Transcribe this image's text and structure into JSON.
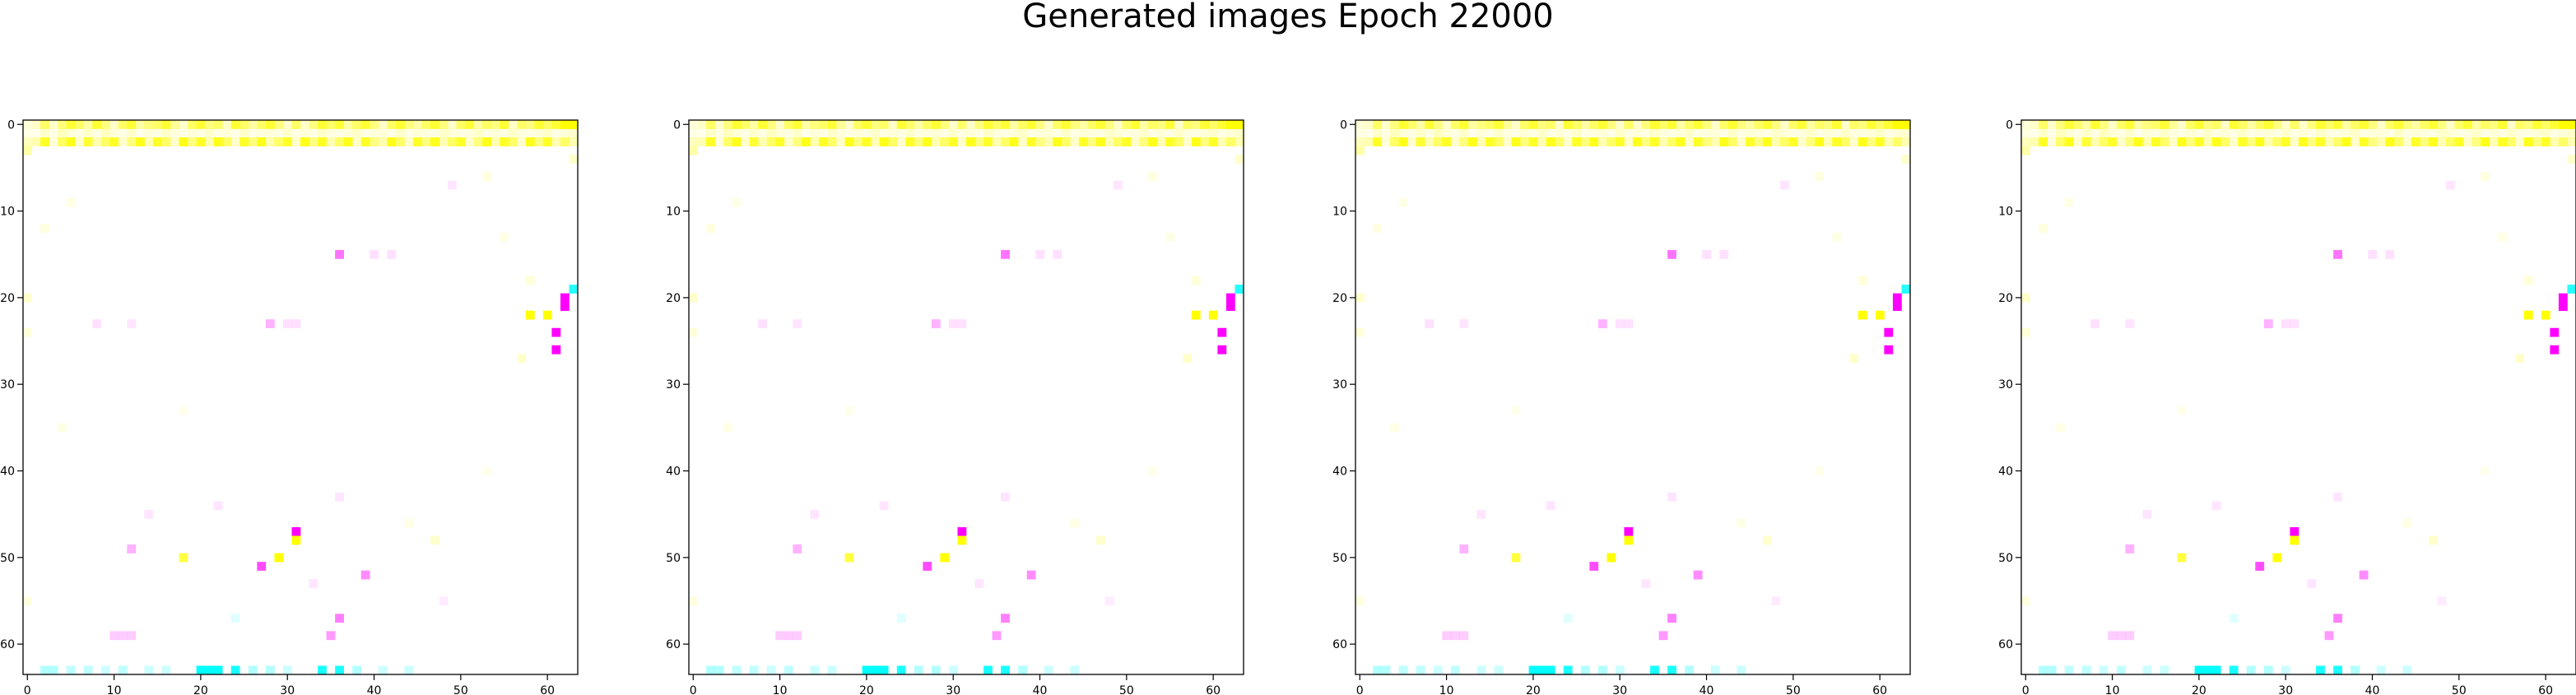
{
  "figure": {
    "title": "Generated images Epoch 22000"
  },
  "colors": {
    "background": "#ffffff",
    "yellow": "#ffff00",
    "magenta": "#ff00ff",
    "cyan": "#00ffff",
    "axis": "#000000"
  },
  "chart_data": [
    {
      "type": "heatmap",
      "panel": 1,
      "xlim": [
        -0.5,
        63.5
      ],
      "ylim": [
        63.5,
        -0.5
      ],
      "xticks": [
        "0",
        "10",
        "20",
        "30",
        "40",
        "50",
        "60"
      ],
      "yticks": [
        "0",
        "10",
        "20",
        "30",
        "40",
        "50",
        "60"
      ],
      "grid": false
    },
    {
      "type": "heatmap",
      "panel": 2,
      "xlim": [
        -0.5,
        63.5
      ],
      "ylim": [
        63.5,
        -0.5
      ],
      "xticks": [
        "0",
        "10",
        "20",
        "30",
        "40",
        "50",
        "60"
      ],
      "yticks": [
        "0",
        "10",
        "20",
        "30",
        "40",
        "50",
        "60"
      ],
      "grid": false
    },
    {
      "type": "heatmap",
      "panel": 3,
      "xlim": [
        -0.5,
        63.5
      ],
      "ylim": [
        63.5,
        -0.5
      ],
      "xticks": [
        "0",
        "10",
        "20",
        "30",
        "40",
        "50",
        "60"
      ],
      "yticks": [
        "0",
        "10",
        "20",
        "30",
        "40",
        "50",
        "60"
      ],
      "grid": false
    },
    {
      "type": "heatmap",
      "panel": 4,
      "xlim": [
        -0.5,
        63.5
      ],
      "ylim": [
        63.5,
        -0.5
      ],
      "xticks": [
        "0",
        "10",
        "20",
        "30",
        "40",
        "50",
        "60"
      ],
      "yticks": [
        "0",
        "10",
        "20",
        "30",
        "40",
        "50",
        "60"
      ],
      "grid": false
    }
  ],
  "pixels": [
    {
      "x": 62,
      "y": 0,
      "color": "yellow",
      "alpha": 1.0
    },
    {
      "x": 63,
      "y": 0,
      "color": "yellow",
      "alpha": 1.0
    },
    {
      "x": 63,
      "y": 19,
      "color": "cyan",
      "alpha": 0.85
    },
    {
      "x": 62,
      "y": 20,
      "color": "magenta",
      "alpha": 1.0
    },
    {
      "x": 62,
      "y": 21,
      "color": "magenta",
      "alpha": 1.0
    },
    {
      "x": 58,
      "y": 22,
      "color": "yellow",
      "alpha": 1.0
    },
    {
      "x": 60,
      "y": 22,
      "color": "yellow",
      "alpha": 1.0
    },
    {
      "x": 61,
      "y": 24,
      "color": "magenta",
      "alpha": 1.0
    },
    {
      "x": 61,
      "y": 26,
      "color": "magenta",
      "alpha": 1.0
    },
    {
      "x": 57,
      "y": 27,
      "color": "yellow",
      "alpha": 0.2
    },
    {
      "x": 36,
      "y": 15,
      "color": "magenta",
      "alpha": 0.55
    },
    {
      "x": 40,
      "y": 15,
      "color": "magenta",
      "alpha": 0.12
    },
    {
      "x": 42,
      "y": 15,
      "color": "magenta",
      "alpha": 0.12
    },
    {
      "x": 28,
      "y": 23,
      "color": "magenta",
      "alpha": 0.3
    },
    {
      "x": 30,
      "y": 23,
      "color": "magenta",
      "alpha": 0.12
    },
    {
      "x": 31,
      "y": 23,
      "color": "magenta",
      "alpha": 0.12
    },
    {
      "x": 8,
      "y": 23,
      "color": "magenta",
      "alpha": 0.12
    },
    {
      "x": 12,
      "y": 23,
      "color": "magenta",
      "alpha": 0.1
    },
    {
      "x": 31,
      "y": 47,
      "color": "magenta",
      "alpha": 1.0
    },
    {
      "x": 31,
      "y": 48,
      "color": "yellow",
      "alpha": 1.0
    },
    {
      "x": 29,
      "y": 50,
      "color": "yellow",
      "alpha": 1.0
    },
    {
      "x": 27,
      "y": 51,
      "color": "magenta",
      "alpha": 0.7
    },
    {
      "x": 18,
      "y": 50,
      "color": "yellow",
      "alpha": 0.75
    },
    {
      "x": 12,
      "y": 49,
      "color": "magenta",
      "alpha": 0.3
    },
    {
      "x": 39,
      "y": 52,
      "color": "magenta",
      "alpha": 0.45
    },
    {
      "x": 47,
      "y": 48,
      "color": "yellow",
      "alpha": 0.2
    },
    {
      "x": 36,
      "y": 57,
      "color": "magenta",
      "alpha": 0.5
    },
    {
      "x": 35,
      "y": 59,
      "color": "magenta",
      "alpha": 0.4
    },
    {
      "x": 10,
      "y": 59,
      "color": "magenta",
      "alpha": 0.2
    },
    {
      "x": 11,
      "y": 59,
      "color": "magenta",
      "alpha": 0.2
    },
    {
      "x": 12,
      "y": 59,
      "color": "magenta",
      "alpha": 0.2
    },
    {
      "x": 24,
      "y": 57,
      "color": "cyan",
      "alpha": 0.12
    },
    {
      "x": 0,
      "y": 55,
      "color": "yellow",
      "alpha": 0.12
    },
    {
      "x": 33,
      "y": 53,
      "color": "magenta",
      "alpha": 0.1
    },
    {
      "x": 20,
      "y": 63,
      "color": "cyan",
      "alpha": 1.0
    },
    {
      "x": 21,
      "y": 63,
      "color": "cyan",
      "alpha": 1.0
    },
    {
      "x": 22,
      "y": 63,
      "color": "cyan",
      "alpha": 1.0
    },
    {
      "x": 24,
      "y": 63,
      "color": "cyan",
      "alpha": 0.9
    },
    {
      "x": 34,
      "y": 63,
      "color": "cyan",
      "alpha": 0.9
    },
    {
      "x": 36,
      "y": 63,
      "color": "cyan",
      "alpha": 0.9
    },
    {
      "x": 2,
      "y": 63,
      "color": "cyan",
      "alpha": 0.3
    },
    {
      "x": 3,
      "y": 63,
      "color": "cyan",
      "alpha": 0.3
    },
    {
      "x": 5,
      "y": 63,
      "color": "cyan",
      "alpha": 0.25
    },
    {
      "x": 7,
      "y": 63,
      "color": "cyan",
      "alpha": 0.25
    },
    {
      "x": 9,
      "y": 63,
      "color": "cyan",
      "alpha": 0.2
    },
    {
      "x": 11,
      "y": 63,
      "color": "cyan",
      "alpha": 0.25
    },
    {
      "x": 14,
      "y": 63,
      "color": "cyan",
      "alpha": 0.2
    },
    {
      "x": 16,
      "y": 63,
      "color": "cyan",
      "alpha": 0.2
    },
    {
      "x": 26,
      "y": 63,
      "color": "cyan",
      "alpha": 0.3
    },
    {
      "x": 28,
      "y": 63,
      "color": "cyan",
      "alpha": 0.3
    },
    {
      "x": 30,
      "y": 63,
      "color": "cyan",
      "alpha": 0.2
    },
    {
      "x": 38,
      "y": 63,
      "color": "cyan",
      "alpha": 0.3
    },
    {
      "x": 41,
      "y": 63,
      "color": "cyan",
      "alpha": 0.2
    },
    {
      "x": 44,
      "y": 63,
      "color": "cyan",
      "alpha": 0.2
    },
    {
      "x": 0,
      "y": 3,
      "color": "yellow",
      "alpha": 0.35
    },
    {
      "x": 63,
      "y": 4,
      "color": "yellow",
      "alpha": 0.2
    },
    {
      "x": 0,
      "y": 20,
      "color": "yellow",
      "alpha": 0.2
    },
    {
      "x": 0,
      "y": 24,
      "color": "yellow",
      "alpha": 0.15
    },
    {
      "x": 2,
      "y": 12,
      "color": "yellow",
      "alpha": 0.12
    },
    {
      "x": 5,
      "y": 9,
      "color": "yellow",
      "alpha": 0.1
    },
    {
      "x": 49,
      "y": 7,
      "color": "magenta",
      "alpha": 0.1
    },
    {
      "x": 53,
      "y": 6,
      "color": "yellow",
      "alpha": 0.12
    },
    {
      "x": 55,
      "y": 13,
      "color": "yellow",
      "alpha": 0.1
    },
    {
      "x": 58,
      "y": 18,
      "color": "yellow",
      "alpha": 0.15
    },
    {
      "x": 4,
      "y": 35,
      "color": "yellow",
      "alpha": 0.1
    },
    {
      "x": 18,
      "y": 33,
      "color": "yellow",
      "alpha": 0.08
    },
    {
      "x": 22,
      "y": 44,
      "color": "magenta",
      "alpha": 0.1
    },
    {
      "x": 14,
      "y": 45,
      "color": "magenta",
      "alpha": 0.1
    },
    {
      "x": 36,
      "y": 43,
      "color": "magenta",
      "alpha": 0.1
    },
    {
      "x": 44,
      "y": 46,
      "color": "yellow",
      "alpha": 0.1
    },
    {
      "x": 53,
      "y": 40,
      "color": "yellow",
      "alpha": 0.08
    },
    {
      "x": 48,
      "y": 55,
      "color": "magenta",
      "alpha": 0.08
    }
  ],
  "top_rows": [
    {
      "y": 0,
      "alphas": [
        0.15,
        0.2,
        0.6,
        0.2,
        0.5,
        0.8,
        0.6,
        0.35,
        0.8,
        0.5,
        0.2,
        0.6,
        0.8,
        0.35,
        0.5,
        0.6,
        0.8,
        0.4,
        0.2,
        0.6,
        0.8,
        0.5,
        0.6,
        0.2,
        0.8,
        0.6,
        0.35,
        0.6,
        0.8,
        0.5,
        0.2,
        0.6,
        0.2,
        0.5,
        0.8,
        0.6,
        0.8,
        0.35,
        0.6,
        0.8,
        0.5,
        0.2,
        0.6,
        0.8,
        0.5,
        0.35,
        0.6,
        0.8,
        0.5,
        0.2,
        0.6,
        0.8,
        0.35,
        0.6,
        0.5,
        0.8,
        0.2,
        0.6,
        0.5,
        0.8,
        0.6,
        0.8,
        1.0,
        1.0
      ]
    },
    {
      "y": 1,
      "alphas": [
        0.1,
        0.08,
        0.2,
        0.1,
        0.25,
        0.15,
        0.1,
        0.2,
        0.1,
        0.25,
        0.15,
        0.1,
        0.2,
        0.08,
        0.15,
        0.1,
        0.2,
        0.12,
        0.1,
        0.15,
        0.1,
        0.2,
        0.1,
        0.15,
        0.1,
        0.2,
        0.1,
        0.12,
        0.15,
        0.1,
        0.2,
        0.1,
        0.15,
        0.1,
        0.2,
        0.12,
        0.1,
        0.15,
        0.2,
        0.1,
        0.12,
        0.15,
        0.1,
        0.2,
        0.1,
        0.15,
        0.12,
        0.1,
        0.2,
        0.15,
        0.1,
        0.12,
        0.2,
        0.1,
        0.15,
        0.1,
        0.2,
        0.12,
        0.1,
        0.15,
        0.2,
        0.1,
        0.15,
        0.2
      ]
    },
    {
      "y": 2,
      "alphas": [
        0.25,
        0.3,
        0.85,
        0.15,
        0.6,
        0.9,
        0.2,
        0.8,
        0.3,
        0.6,
        0.85,
        0.2,
        0.5,
        0.9,
        0.3,
        0.85,
        0.6,
        0.2,
        0.9,
        0.5,
        0.85,
        0.3,
        0.9,
        0.6,
        0.2,
        0.85,
        0.5,
        0.9,
        0.3,
        0.6,
        0.85,
        0.2,
        0.9,
        0.5,
        0.85,
        0.3,
        0.6,
        0.9,
        0.2,
        0.85,
        0.5,
        0.3,
        0.9,
        0.6,
        0.2,
        0.85,
        0.5,
        0.9,
        0.3,
        0.6,
        0.85,
        0.2,
        0.5,
        0.9,
        0.3,
        0.85,
        0.6,
        0.2,
        0.9,
        0.5,
        0.85,
        0.3,
        0.6,
        0.3
      ]
    }
  ]
}
